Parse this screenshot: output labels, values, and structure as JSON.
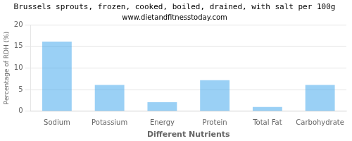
{
  "chart_data": {
    "type": "bar",
    "title": "Brussels sprouts, frozen, cooked, boiled, drained, with salt per 100g",
    "subtitle": "www.dietandfitnesstoday.com",
    "xlabel": "Different Nutrients",
    "ylabel": "Percentage of RDH (%)",
    "categories": [
      "Sodium",
      "Potassium",
      "Energy",
      "Protein",
      "Total Fat",
      "Carbohydrate"
    ],
    "values": [
      16.1,
      6.1,
      2.1,
      7.2,
      1.0,
      6.1
    ],
    "ylim": [
      0,
      20
    ],
    "yticks": [
      0,
      5,
      10,
      15,
      20
    ],
    "grid": true
  }
}
